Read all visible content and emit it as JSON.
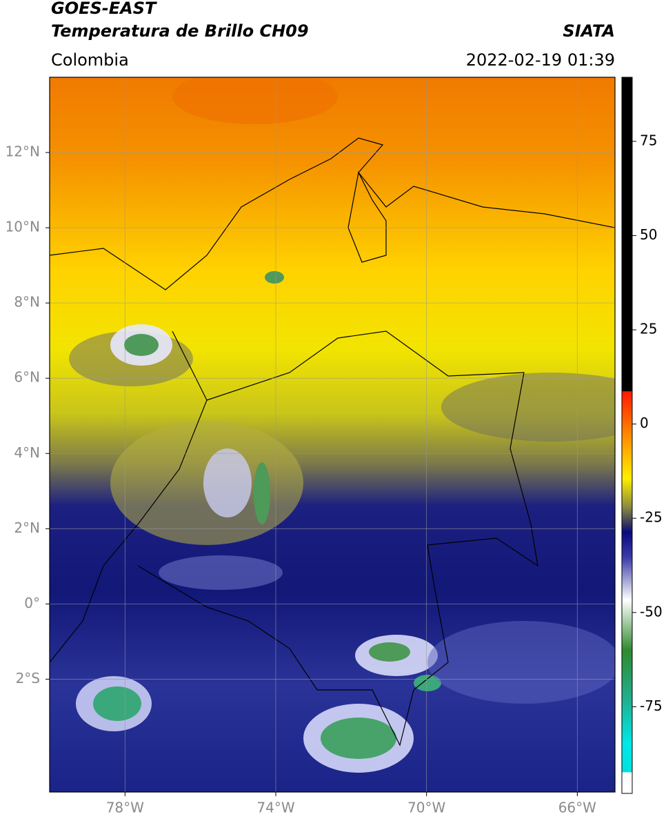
{
  "header": {
    "satellite": "GOES-EAST",
    "title": "Temperatura de Brillo CH09",
    "region": "Colombia",
    "organization": "SIATA",
    "datetime": "2022-02-19 01:39"
  },
  "map": {
    "xlim": [
      -80,
      -65
    ],
    "ylim": [
      -5,
      14
    ],
    "xticks": [
      {
        "value": -78,
        "label": "78°W"
      },
      {
        "value": -74,
        "label": "74°W"
      },
      {
        "value": -70,
        "label": "70°W"
      },
      {
        "value": -66,
        "label": "66°W"
      }
    ],
    "yticks": [
      {
        "value": 12,
        "label": "12°N"
      },
      {
        "value": 10,
        "label": "10°N"
      },
      {
        "value": 8,
        "label": "8°N"
      },
      {
        "value": 6,
        "label": "6°N"
      },
      {
        "value": 4,
        "label": "4°N"
      },
      {
        "value": 2,
        "label": "2°N"
      },
      {
        "value": 0,
        "label": "0°"
      },
      {
        "value": -2,
        "label": "2°S"
      }
    ],
    "grid": true
  },
  "colorbar": {
    "lim": [
      -98,
      92
    ],
    "ticks": [
      75,
      50,
      25,
      0,
      -25,
      -50,
      -75
    ]
  }
}
